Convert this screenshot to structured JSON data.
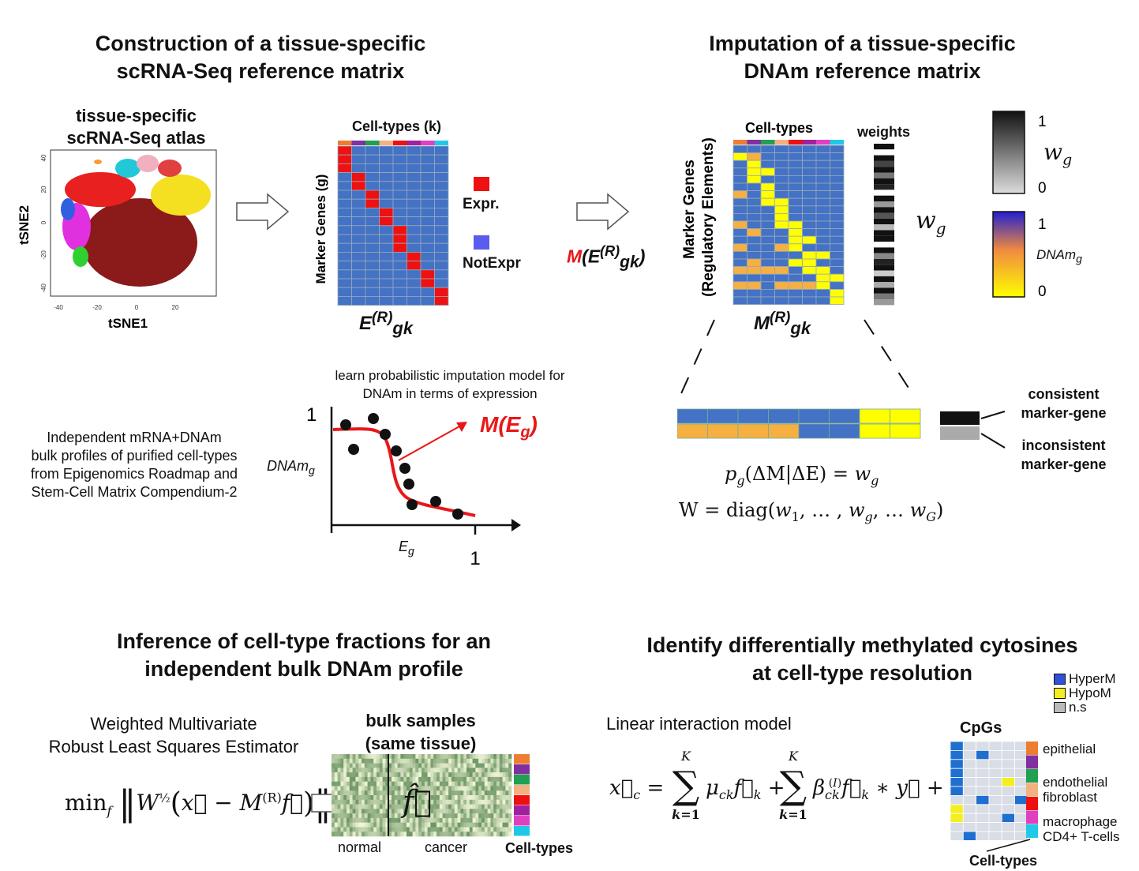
{
  "panel1": {
    "title_line1": "Construction of a tissue-specific",
    "title_line2": "scRNA-Seq reference matrix",
    "atlas_line1": "tissue-specific",
    "atlas_line2": "scRNA-Seq atlas",
    "tsne": {
      "xlabel": "tSNE1",
      "ylabel": "tSNE2",
      "xticks": [
        "-40",
        "-20",
        "0",
        "20"
      ],
      "yticks": [
        "40",
        "20",
        "0",
        "-20",
        "-40"
      ]
    },
    "matrix_col_label": "Cell-types (k)",
    "matrix_row_label": "Marker Genes (g)",
    "matrix_caption": "E(R)gk",
    "legend_expr": "Expr.",
    "legend_notexpr": "NotExpr",
    "map_label": "M(E(R)gk)"
  },
  "panel2": {
    "title_line1": "Imputation of a tissue-specific",
    "title_line2": "DNAm reference matrix",
    "matrix_col_label": "Cell-types",
    "matrix_row_label_1": "Marker Genes",
    "matrix_row_label_2": "(Regulatory Elements)",
    "weights_label": "weights",
    "wg_label": "wg",
    "matrix_caption": "M(R)gk",
    "scale_gray_top": "1",
    "scale_gray_bottom": "0",
    "scale_gray_label": "wg",
    "scale_color_top": "1",
    "scale_color_bottom": "0",
    "scale_color_label": "DNAmg",
    "consistent_1": "consistent",
    "consistent_2": "marker-gene",
    "inconsistent_1": "inconsistent",
    "inconsistent_2": "marker-gene",
    "formula1": "pg(ΔM|ΔE) = wg",
    "formula2": "W = diag(w1, …, wg, … wG)"
  },
  "model_panel": {
    "title_line1": "learn probabilistic imputation model for",
    "title_line2": "DNAm in terms of expression",
    "curve_label": "M(Eg)",
    "ylabel": "DNAmg",
    "xlabel": "Eg",
    "y_tick": "1",
    "x_tick": "1",
    "bulk_line1": "Independent mRNA+DNAm",
    "bulk_line2": "bulk profiles of purified cell-types",
    "bulk_line3": "from Epigenomics Roadmap and",
    "bulk_line4": "Stem-Cell Matrix Compendium-2"
  },
  "panel3": {
    "title_line1": "Inference of cell-type fractions for an",
    "title_line2": "independent bulk DNAm profile",
    "estimator_1": "Weighted Multivariate",
    "estimator_2": "Robust Least Squares Estimator",
    "bulk_title_1": "bulk samples",
    "bulk_title_2": "(same tissue)",
    "normal_label": "normal",
    "cancer_label": "cancer",
    "celltypes_label": "Cell-types"
  },
  "panel4": {
    "title_line1": "Identify differentially methylated cytosines",
    "title_line2": "at cell-type resolution",
    "model_label": "Linear interaction model",
    "cpgs_label": "CpGs",
    "legend": [
      {
        "label": "HyperM",
        "color": "#3050d8"
      },
      {
        "label": "HypoM",
        "color": "#f4ee20"
      },
      {
        "label": "n.s",
        "color": "#bbbbbb"
      }
    ],
    "cell_types": [
      "epithelial",
      "endothelial",
      "fibroblast",
      "macrophage",
      "CD4+ T-cells"
    ],
    "celltypes_label": "Cell-types"
  },
  "colors": {
    "celltypes": [
      "#ee7d32",
      "#8030a0",
      "#20a050",
      "#f4b080",
      "#ee1010",
      "#a020a0",
      "#e040c0",
      "#20c8e8"
    ],
    "matrix_blue": "#4472c4",
    "expr_red": "#ee1111",
    "yellow": "#ffff00",
    "orange": "#f5b041"
  }
}
